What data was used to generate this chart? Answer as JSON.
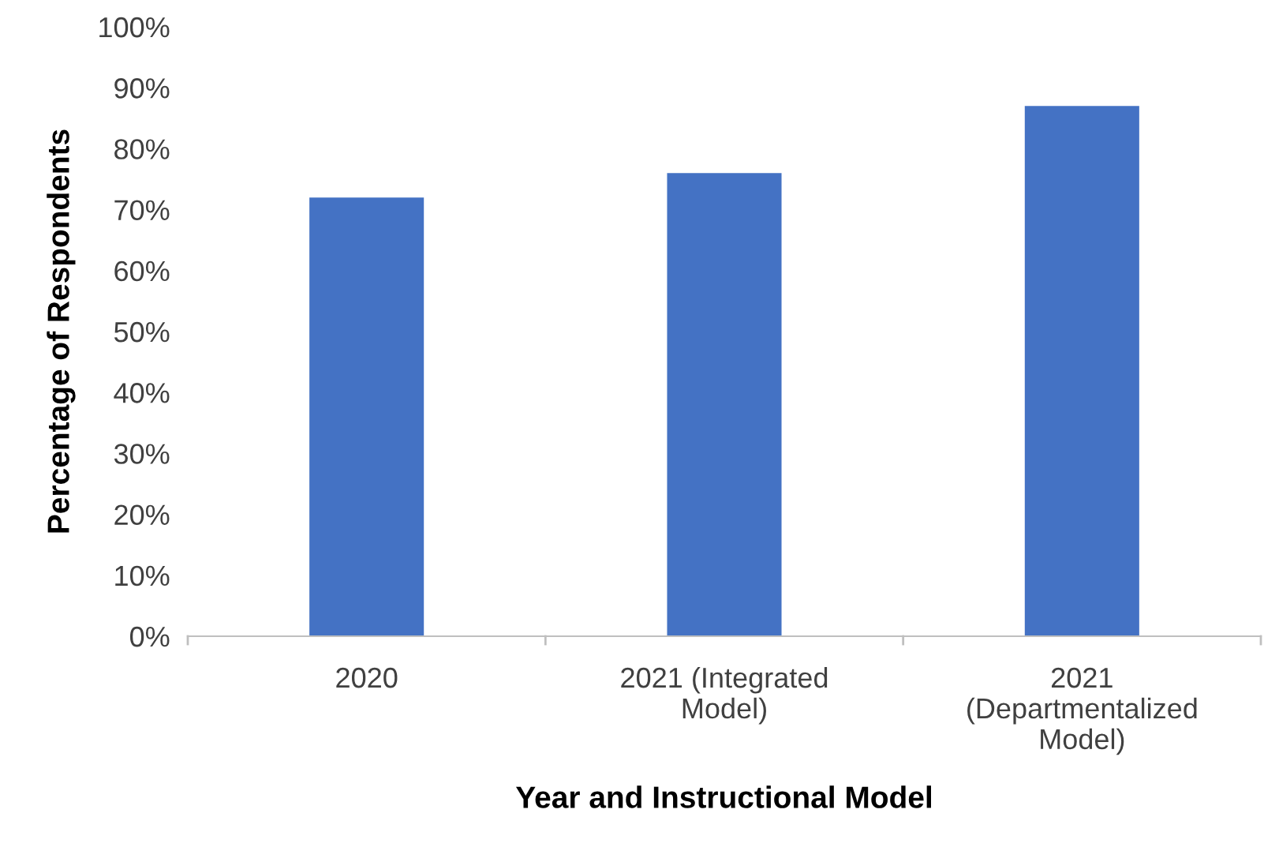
{
  "chart_data": {
    "type": "bar",
    "xlabel": "Year and Instructional Model",
    "ylabel": "Percentage of Respondents",
    "categories": [
      "2020",
      "2021 (Integrated\nModel)",
      "2021\n(Departmentalized\nModel)"
    ],
    "values": [
      72,
      76,
      87
    ],
    "color": "#4472c4",
    "ylim": [
      0,
      100
    ],
    "yticks": [
      {
        "value": 0,
        "label": "0%"
      },
      {
        "value": 10,
        "label": "10%"
      },
      {
        "value": 20,
        "label": "20%"
      },
      {
        "value": 30,
        "label": "30%"
      },
      {
        "value": 40,
        "label": "40%"
      },
      {
        "value": 50,
        "label": "50%"
      },
      {
        "value": 60,
        "label": "60%"
      },
      {
        "value": 70,
        "label": "70%"
      },
      {
        "value": 80,
        "label": "80%"
      },
      {
        "value": 90,
        "label": "90%"
      },
      {
        "value": 100,
        "label": "100%"
      }
    ],
    "grid": false,
    "legend": false
  }
}
